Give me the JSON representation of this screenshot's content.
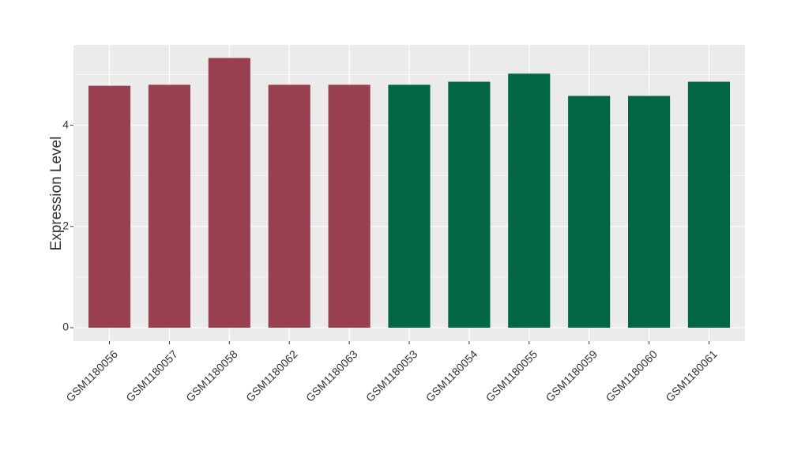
{
  "chart_data": {
    "type": "bar",
    "y_label": "Expression Level",
    "categories": [
      "GSM1180056",
      "GSM1180057",
      "GSM1180058",
      "GSM1180062",
      "GSM1180063",
      "GSM1180053",
      "GSM1180054",
      "GSM1180055",
      "GSM1180059",
      "GSM1180060",
      "GSM1180061"
    ],
    "values": [
      4.78,
      4.8,
      5.33,
      4.8,
      4.8,
      4.8,
      4.86,
      5.02,
      4.58,
      4.58,
      4.86
    ],
    "colors": [
      "#98404f",
      "#98404f",
      "#98404f",
      "#98404f",
      "#98404f",
      "#006644",
      "#006644",
      "#006644",
      "#006644",
      "#006644",
      "#006644"
    ],
    "ylim": [
      -0.266,
      5.586
    ],
    "yticks": [
      0,
      2,
      4
    ],
    "grid": true
  }
}
